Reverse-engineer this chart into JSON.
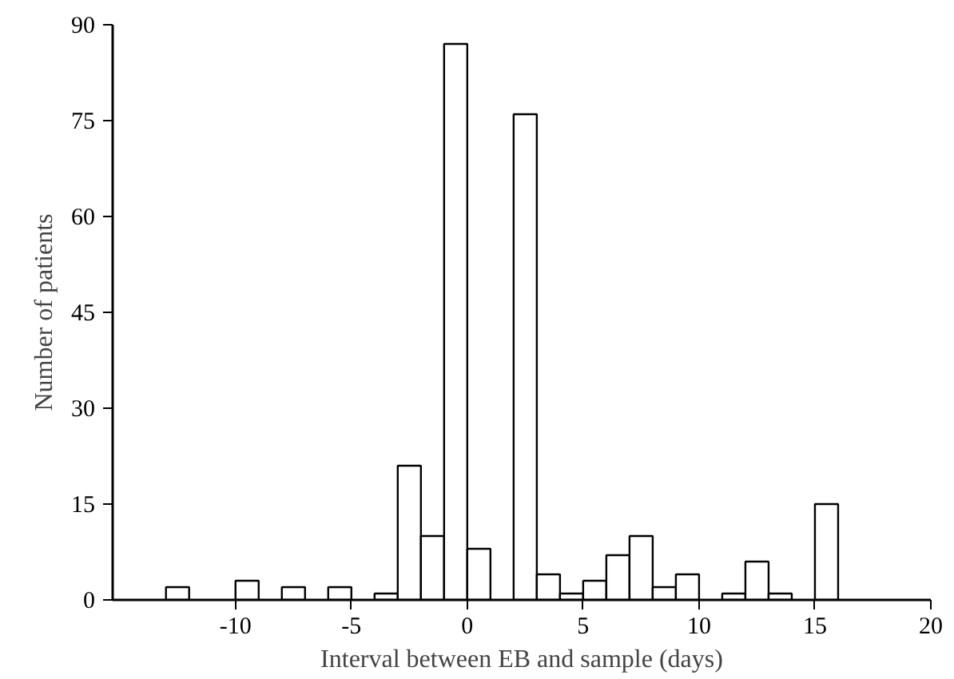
{
  "chart_data": {
    "type": "histogram",
    "xlabel": "Interval between EB and sample (days)",
    "ylabel": "Number of patients",
    "bins": [
      -13,
      -12,
      -11,
      -10,
      -9,
      -8,
      -7,
      -6,
      -5,
      -4,
      -3,
      -2,
      -1,
      0,
      1,
      2,
      3,
      4,
      5,
      6,
      7,
      8,
      9,
      10,
      11,
      12,
      13,
      14,
      15,
      16
    ],
    "values": [
      2,
      0,
      0,
      3,
      0,
      2,
      0,
      2,
      0,
      1,
      21,
      10,
      87,
      8,
      0,
      76,
      4,
      1,
      3,
      7,
      10,
      2,
      4,
      0,
      1,
      6,
      1,
      0,
      15
    ],
    "color": "#ffffff",
    "xlim": [
      -15.3,
      20
    ],
    "ylim": [
      0,
      90
    ],
    "xticks": [
      -10,
      -5,
      0,
      5,
      10,
      15,
      20
    ],
    "yticks": [
      0,
      15,
      30,
      45,
      60,
      75,
      90
    ],
    "grid": false
  }
}
